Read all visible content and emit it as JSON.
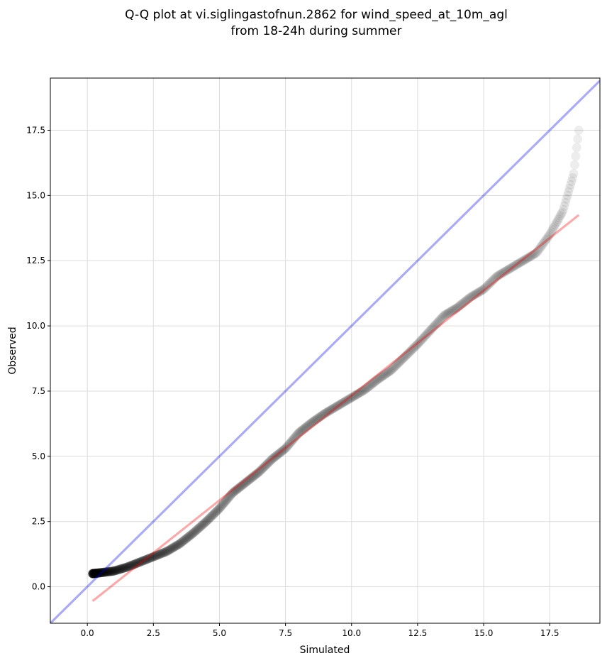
{
  "chart_data": {
    "type": "scatter",
    "title": "Q-Q plot at vi.siglingastofnun.2862 for wind_speed_at_10m_agl",
    "subtitle": "from 18-24h during summer",
    "xlabel": "Simulated",
    "ylabel": "Observed",
    "xlim": [
      -1.4,
      19.4
    ],
    "ylim": [
      -1.4,
      19.5
    ],
    "xticks": [
      "0.0",
      "2.5",
      "5.0",
      "7.5",
      "10.0",
      "12.5",
      "15.0",
      "17.5"
    ],
    "yticks": [
      "0.0",
      "2.5",
      "5.0",
      "7.5",
      "10.0",
      "12.5",
      "15.0",
      "17.5"
    ],
    "grid": true,
    "colors": {
      "points": "#000000",
      "identity_line": "#0000dd",
      "fit_line": "#ee0000"
    },
    "identity_line": {
      "x": [
        -1.4,
        19.4
      ],
      "y": [
        -1.4,
        19.4
      ]
    },
    "fit_line": {
      "x": [
        0.2,
        18.6
      ],
      "y": [
        -0.55,
        14.25
      ]
    },
    "quantile_curve": {
      "x": [
        0.2,
        0.6,
        1.0,
        1.5,
        2.0,
        2.5,
        3.0,
        3.5,
        4.0,
        4.5,
        5.0,
        5.5,
        6.0,
        6.5,
        7.0,
        7.5,
        8.0,
        8.5,
        9.0,
        9.5,
        10.0,
        10.5,
        11.0,
        11.5,
        12.0,
        12.5,
        13.0,
        13.5,
        14.0,
        14.5,
        15.0,
        15.5,
        16.0,
        16.5,
        17.0,
        17.5,
        18.0,
        18.4,
        18.6
      ],
      "y": [
        0.5,
        0.55,
        0.6,
        0.75,
        0.95,
        1.15,
        1.35,
        1.65,
        2.05,
        2.5,
        3.0,
        3.6,
        4.0,
        4.4,
        4.9,
        5.3,
        5.9,
        6.3,
        6.65,
        6.95,
        7.25,
        7.55,
        7.95,
        8.3,
        8.8,
        9.3,
        9.85,
        10.4,
        10.7,
        11.1,
        11.4,
        11.9,
        12.2,
        12.5,
        12.8,
        13.5,
        14.4,
        15.8,
        17.5
      ]
    },
    "sample_count": 800
  }
}
